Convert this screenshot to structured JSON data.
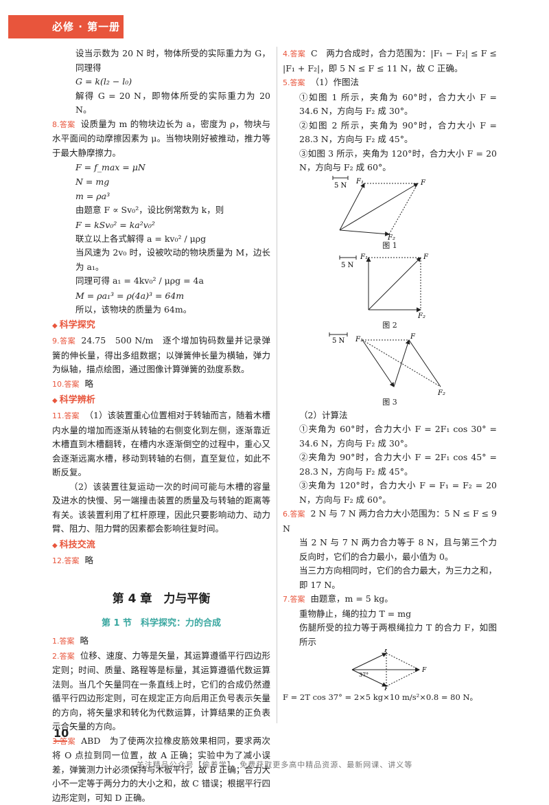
{
  "header": {
    "tab": "必修 · 第一册"
  },
  "left": {
    "l1": "设当示数为 20 N 时，物体所受的实际重力为 G，同理得",
    "l2": "G = k(l₂ − l₀)",
    "l3": "解得 G = 20 N，即物体所受的实际重力为 20 N。",
    "q8_num": "8.",
    "ans_label": "答案",
    "q8_text": "设质量为 m 的物块边长为 a，密度为 ρ，物块与水平面间的动摩擦因素为 μ。当物块刚好被推动，推力等于最大静摩擦力。",
    "q8_f1": "F = f_max = μN",
    "q8_f2": "N = mg",
    "q8_f3": "m = ρa³",
    "q8_f4": "由题意 F ∝ Sv₀²，设比例常数为 k，则",
    "q8_f5": "F = kSv₀² = ka²v₀²",
    "q8_f6": "联立以上各式解得 a = kv₀² / μρg",
    "q8_f7": "当风速为 2v₀ 时，设被吹动的物块质量为 M，边长为 a₁。",
    "q8_f8": "同理可得 a₁ = 4kv₀² / μρg = 4a",
    "q8_f9": "M = ρa₁³ = ρ(4a)³ = 64m",
    "q8_f10": "所以，该物块的质量为 64m。",
    "sec1": "科学探究",
    "q9_num": "9.",
    "q9_text": "24.75　500 N/m　逐个增加钩码数量并记录弹簧的伸长量，得出多组数据；以弹簧伸长量为横轴，弹力为纵轴，描点绘图，通过图像计算弹簧的劲度系数。",
    "q10_num": "10.",
    "q10_text": "略",
    "sec2": "科学辨析",
    "q11_num": "11.",
    "q11_p1": "（1）该装置重心位置相对于转轴而言，随着木槽内水量的增加而逐渐从转轴的右侧变化到左侧，逐渐靠近木槽直到木槽翻转，在槽内水逐渐倒空的过程中，重心又会逐渐远离水槽，移动到转轴的右侧，直至复位，如此不断反复。",
    "q11_p2": "（2）该装置往复运动一次的时间可能与木槽的容量及进水的快慢、另一端撞击装置的质量及与转轴的距离等有关。该装置利用了杠杆原理，因此只要影响动力、动力臂、阻力、阻力臂的因素都会影响往复时间。",
    "sec3": "科技交流",
    "q12_num": "12.",
    "q12_text": "略",
    "chapter": "第 4 章　力与平衡",
    "section": "第 1 节　科学探究：力的合成",
    "c1_num": "1.",
    "c1_text": "略",
    "c2_num": "2.",
    "c2_text": "位移、速度、力等是矢量，其运算遵循平行四边形定则；时间、质量、路程等是标量，其运算遵循代数运算法则。当几个矢量同在一条直线上时，它们的合成仍然遵循平行四边形定则，可在规定正方向后用正负号表示矢量的方向，将矢量求和转化为代数运算，计算结果的正负表示合矢量的方向。",
    "c3_num": "3.",
    "c3_text": "ABD　为了使两次拉橡皮筋效果相同，要求两次将 O 点拉到同一位置，故 A 正确；实验中为了减小误差，弹簧测力计必须保持与木板平行，故 B 正确；合力大小不一定等于两分力的大小之和，故 C 错误；根据平行四边形定则，可知 D 正确。"
  },
  "right": {
    "c4_num": "4.",
    "c4_text": "C　两力合成时，合力范围为：|F₁ − F₂| ≤ F ≤ |F₁ + F₂|，即 5 N ≤ F ≤ 11 N，故 C 正确。",
    "c5_num": "5.",
    "c5_text": "（1）作图法",
    "c5_a": "①如图 1 所示，夹角为 60°时，合力大小 F = 34.6 N，方向与 F₂ 成 30°。",
    "c5_b": "②如图 2 所示，夹角为 90°时，合力大小 F = 28.3 N，方向与 F₂ 成 45°。",
    "c5_c": "③如图 3 所示，夹角为 120°时，合力大小 F = 20 N，方向与 F₂ 成 60°。",
    "scale": "5 N",
    "lblF": "F",
    "lblF1": "F₁",
    "lblF2": "F₂",
    "lblT": "T",
    "lbl37": "37°",
    "fig1": "图 1",
    "fig2": "图 2",
    "fig3": "图 3",
    "c5_calc": "（2）计算法",
    "c5_d": "①夹角为 60°时，合力大小 F = 2F₁ cos 30° = 34.6 N，方向与 F₂ 成 30°。",
    "c5_e": "②夹角为 90°时，合力大小 F = 2F₁ cos 45° = 28.3 N，方向与 F₂ 成 45°。",
    "c5_f": "③夹角为 120°时，合力大小 F = F₁ = F₂ = 20 N，方向与 F₂ 成 60°。",
    "c6_num": "6.",
    "c6_text": "2 N 与 7 N 两力合力大小范围为：5 N ≤ F ≤ 9 N",
    "c6_b": "当 2 N 与 7 N 两力合力等于 8 N，且与第三个力反向时，它们的合力最小，最小值为 0。",
    "c6_c": "当三力方向相同时，它们的合力最大，为三力之和，即 17 N。",
    "c7_num": "7.",
    "c7_text": "由题意，m = 5 kg。",
    "c7_b": "重物静止，绳的拉力 T = mg",
    "c7_c": "伤腿所受的拉力等于两根绳拉力 T 的合力 F，如图所示",
    "c7_d": "F = 2T cos 37° = 2×5 kg×10 m/s²×0.8 = 80 N。"
  },
  "page": {
    "number": "10"
  },
  "footer": "关注精品公众号【偷着学】，免费获取更多高中精品资源、最新网课、讲义等",
  "colors": {
    "accent": "#e8553c",
    "section_teal": "#3aa7a0"
  }
}
